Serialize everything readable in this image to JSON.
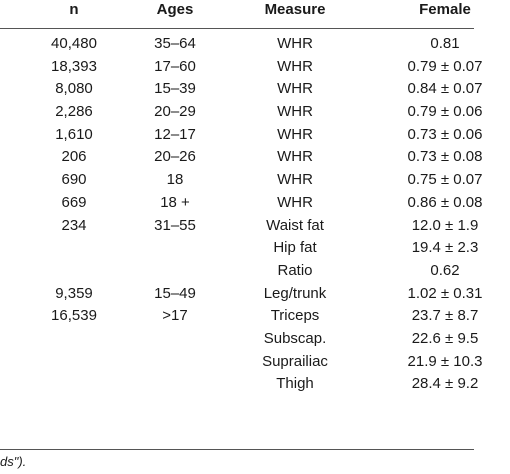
{
  "table": {
    "headers": {
      "n": "n",
      "ages": "Ages",
      "measure": "Measure",
      "female": "Female"
    },
    "rows": [
      {
        "n": "40,480",
        "ages": "35–64",
        "measure": "WHR",
        "female": "0.81"
      },
      {
        "n": "18,393",
        "ages": "17–60",
        "measure": "WHR",
        "female": "0.79 ± 0.07"
      },
      {
        "n": "8,080",
        "ages": "15–39",
        "measure": "WHR",
        "female": "0.84 ± 0.07"
      },
      {
        "n": "2,286",
        "ages": "20–29",
        "measure": "WHR",
        "female": "0.79 ± 0.06"
      },
      {
        "n": "1,610",
        "ages": "12–17",
        "measure": "WHR",
        "female": "0.73 ± 0.06"
      },
      {
        "n": "206",
        "ages": "20–26",
        "measure": "WHR",
        "female": "0.73 ± 0.08"
      },
      {
        "n": "690",
        "ages": "18",
        "measure": "WHR",
        "female": "0.75 ± 0.07"
      },
      {
        "n": "669",
        "ages": "18 +",
        "measure": "WHR",
        "female": "0.86 ± 0.08"
      },
      {
        "n": "234",
        "ages": "31–55",
        "measure": "Waist fat",
        "female": "12.0 ± 1.9"
      },
      {
        "n": "",
        "ages": "",
        "measure": "Hip fat",
        "female": "19.4 ± 2.3"
      },
      {
        "n": "",
        "ages": "",
        "measure": "Ratio",
        "female": "0.62"
      },
      {
        "n": "9,359",
        "ages": "15–49",
        "measure": "Leg/trunk",
        "female": "1.02 ± 0.31"
      },
      {
        "n": "16,539",
        "ages": ">17",
        "measure": "Triceps",
        "female": "23.7 ± 8.7"
      },
      {
        "n": "",
        "ages": "",
        "measure": "Subscap.",
        "female": "22.6 ± 9.5"
      },
      {
        "n": "",
        "ages": "",
        "measure": "Suprailiac",
        "female": "21.9 ± 10.3"
      },
      {
        "n": "",
        "ages": "",
        "measure": "Thigh",
        "female": "28.4 ± 9.2"
      }
    ]
  },
  "footnote": "ds\")."
}
